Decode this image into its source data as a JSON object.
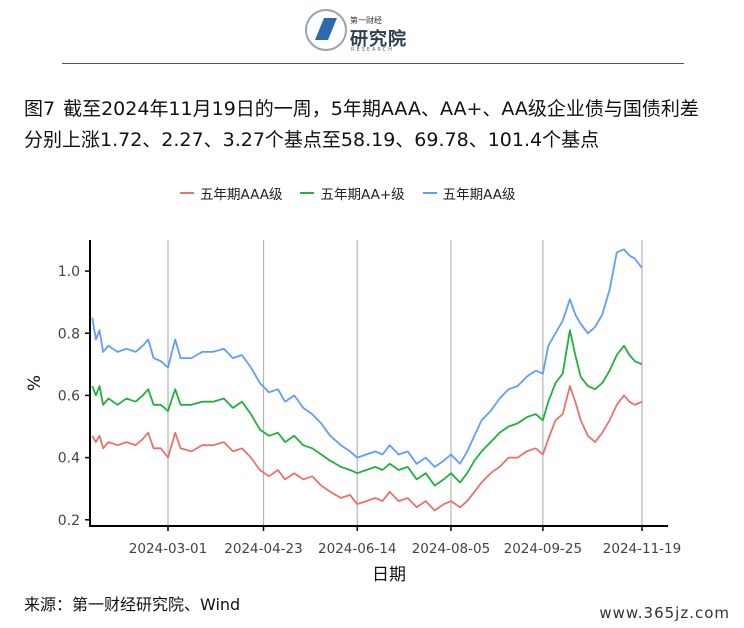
{
  "logo": {
    "top_text": "第一财经",
    "main_text": "研究院",
    "sub_text": "RESEARCH"
  },
  "figure": {
    "number": "图7",
    "title": "截至2024年11月19日的一周，5年期AAA、AA+、AA级企业债与国债利差分别上涨1.72、2.27、3.27个基点至58.19、69.78、101.4个基点"
  },
  "source": "来源：第一财经研究院、Wind",
  "watermark": "www.365jz.com",
  "colors": {
    "aaa": "#e8736c",
    "aaplus": "#1fb040",
    "aa": "#619cff"
  },
  "chart_data": {
    "type": "line",
    "xlabel": "日期",
    "ylabel": "%",
    "x_range": [
      "2024-01-19",
      "2024-11-19"
    ],
    "ylim": [
      0.18,
      1.1
    ],
    "x_ticks": [
      "2024-03-01",
      "2024-04-23",
      "2024-06-14",
      "2024-08-05",
      "2024-09-25",
      "2024-11-19"
    ],
    "y_ticks": [
      0.2,
      0.4,
      0.6,
      0.8,
      1.0
    ],
    "y_tick_labels": [
      "0.2",
      "0.4",
      "0.6",
      "0.8",
      "1.0"
    ],
    "grid": "vertical major lines",
    "legend": "top",
    "series": [
      {
        "name": "五年期AAA级",
        "color": "#e8736c",
        "points": [
          [
            "2024-01-19",
            0.47
          ],
          [
            "2024-01-21",
            0.45
          ],
          [
            "2024-01-23",
            0.47
          ],
          [
            "2024-01-25",
            0.43
          ],
          [
            "2024-01-28",
            0.45
          ],
          [
            "2024-02-02",
            0.44
          ],
          [
            "2024-02-07",
            0.45
          ],
          [
            "2024-02-12",
            0.44
          ],
          [
            "2024-02-16",
            0.46
          ],
          [
            "2024-02-19",
            0.48
          ],
          [
            "2024-02-22",
            0.43
          ],
          [
            "2024-02-26",
            0.43
          ],
          [
            "2024-03-01",
            0.4
          ],
          [
            "2024-03-05",
            0.48
          ],
          [
            "2024-03-08",
            0.43
          ],
          [
            "2024-03-14",
            0.42
          ],
          [
            "2024-03-20",
            0.44
          ],
          [
            "2024-03-26",
            0.44
          ],
          [
            "2024-04-01",
            0.45
          ],
          [
            "2024-04-06",
            0.42
          ],
          [
            "2024-04-11",
            0.43
          ],
          [
            "2024-04-16",
            0.4
          ],
          [
            "2024-04-21",
            0.36
          ],
          [
            "2024-04-26",
            0.34
          ],
          [
            "2024-05-01",
            0.36
          ],
          [
            "2024-05-05",
            0.33
          ],
          [
            "2024-05-10",
            0.35
          ],
          [
            "2024-05-15",
            0.33
          ],
          [
            "2024-05-20",
            0.34
          ],
          [
            "2024-05-25",
            0.31
          ],
          [
            "2024-05-30",
            0.29
          ],
          [
            "2024-06-05",
            0.27
          ],
          [
            "2024-06-10",
            0.28
          ],
          [
            "2024-06-14",
            0.25
          ],
          [
            "2024-06-19",
            0.26
          ],
          [
            "2024-06-24",
            0.27
          ],
          [
            "2024-06-28",
            0.26
          ],
          [
            "2024-07-02",
            0.29
          ],
          [
            "2024-07-07",
            0.26
          ],
          [
            "2024-07-12",
            0.27
          ],
          [
            "2024-07-17",
            0.24
          ],
          [
            "2024-07-22",
            0.26
          ],
          [
            "2024-07-27",
            0.23
          ],
          [
            "2024-08-01",
            0.25
          ],
          [
            "2024-08-05",
            0.26
          ],
          [
            "2024-08-10",
            0.24
          ],
          [
            "2024-08-14",
            0.26
          ],
          [
            "2024-08-18",
            0.29
          ],
          [
            "2024-08-22",
            0.32
          ],
          [
            "2024-08-27",
            0.35
          ],
          [
            "2024-09-01",
            0.37
          ],
          [
            "2024-09-06",
            0.4
          ],
          [
            "2024-09-11",
            0.4
          ],
          [
            "2024-09-16",
            0.42
          ],
          [
            "2024-09-21",
            0.43
          ],
          [
            "2024-09-25",
            0.41
          ],
          [
            "2024-09-28",
            0.46
          ],
          [
            "2024-10-02",
            0.52
          ],
          [
            "2024-10-06",
            0.54
          ],
          [
            "2024-10-10",
            0.63
          ],
          [
            "2024-10-13",
            0.58
          ],
          [
            "2024-10-16",
            0.52
          ],
          [
            "2024-10-20",
            0.47
          ],
          [
            "2024-10-24",
            0.45
          ],
          [
            "2024-10-28",
            0.48
          ],
          [
            "2024-11-01",
            0.52
          ],
          [
            "2024-11-05",
            0.57
          ],
          [
            "2024-11-09",
            0.6
          ],
          [
            "2024-11-12",
            0.58
          ],
          [
            "2024-11-15",
            0.57
          ],
          [
            "2024-11-19",
            0.58
          ]
        ]
      },
      {
        "name": "五年期AA+级",
        "color": "#1fb040",
        "points": [
          [
            "2024-01-19",
            0.63
          ],
          [
            "2024-01-21",
            0.6
          ],
          [
            "2024-01-23",
            0.63
          ],
          [
            "2024-01-25",
            0.57
          ],
          [
            "2024-01-28",
            0.59
          ],
          [
            "2024-02-02",
            0.57
          ],
          [
            "2024-02-07",
            0.59
          ],
          [
            "2024-02-12",
            0.58
          ],
          [
            "2024-02-16",
            0.6
          ],
          [
            "2024-02-19",
            0.62
          ],
          [
            "2024-02-22",
            0.57
          ],
          [
            "2024-02-26",
            0.57
          ],
          [
            "2024-03-01",
            0.55
          ],
          [
            "2024-03-05",
            0.62
          ],
          [
            "2024-03-08",
            0.57
          ],
          [
            "2024-03-14",
            0.57
          ],
          [
            "2024-03-20",
            0.58
          ],
          [
            "2024-03-26",
            0.58
          ],
          [
            "2024-04-01",
            0.59
          ],
          [
            "2024-04-06",
            0.56
          ],
          [
            "2024-04-11",
            0.58
          ],
          [
            "2024-04-16",
            0.54
          ],
          [
            "2024-04-21",
            0.49
          ],
          [
            "2024-04-26",
            0.47
          ],
          [
            "2024-05-01",
            0.48
          ],
          [
            "2024-05-05",
            0.45
          ],
          [
            "2024-05-10",
            0.47
          ],
          [
            "2024-05-15",
            0.44
          ],
          [
            "2024-05-20",
            0.43
          ],
          [
            "2024-05-25",
            0.41
          ],
          [
            "2024-05-30",
            0.39
          ],
          [
            "2024-06-05",
            0.37
          ],
          [
            "2024-06-10",
            0.36
          ],
          [
            "2024-06-14",
            0.35
          ],
          [
            "2024-06-19",
            0.36
          ],
          [
            "2024-06-24",
            0.37
          ],
          [
            "2024-06-28",
            0.36
          ],
          [
            "2024-07-02",
            0.38
          ],
          [
            "2024-07-07",
            0.36
          ],
          [
            "2024-07-12",
            0.37
          ],
          [
            "2024-07-17",
            0.33
          ],
          [
            "2024-07-22",
            0.35
          ],
          [
            "2024-07-27",
            0.31
          ],
          [
            "2024-08-01",
            0.33
          ],
          [
            "2024-08-05",
            0.35
          ],
          [
            "2024-08-10",
            0.32
          ],
          [
            "2024-08-14",
            0.35
          ],
          [
            "2024-08-18",
            0.39
          ],
          [
            "2024-08-22",
            0.42
          ],
          [
            "2024-08-27",
            0.45
          ],
          [
            "2024-09-01",
            0.48
          ],
          [
            "2024-09-06",
            0.5
          ],
          [
            "2024-09-11",
            0.51
          ],
          [
            "2024-09-16",
            0.53
          ],
          [
            "2024-09-21",
            0.54
          ],
          [
            "2024-09-25",
            0.52
          ],
          [
            "2024-09-28",
            0.58
          ],
          [
            "2024-10-02",
            0.64
          ],
          [
            "2024-10-06",
            0.67
          ],
          [
            "2024-10-10",
            0.81
          ],
          [
            "2024-10-13",
            0.73
          ],
          [
            "2024-10-16",
            0.66
          ],
          [
            "2024-10-20",
            0.63
          ],
          [
            "2024-10-24",
            0.62
          ],
          [
            "2024-10-28",
            0.64
          ],
          [
            "2024-11-01",
            0.68
          ],
          [
            "2024-11-05",
            0.73
          ],
          [
            "2024-11-09",
            0.76
          ],
          [
            "2024-11-12",
            0.73
          ],
          [
            "2024-11-15",
            0.71
          ],
          [
            "2024-11-19",
            0.7
          ]
        ]
      },
      {
        "name": "五年期AA级",
        "color": "#619cff",
        "points": [
          [
            "2024-01-19",
            0.85
          ],
          [
            "2024-01-21",
            0.78
          ],
          [
            "2024-01-23",
            0.81
          ],
          [
            "2024-01-25",
            0.74
          ],
          [
            "2024-01-28",
            0.76
          ],
          [
            "2024-02-02",
            0.74
          ],
          [
            "2024-02-07",
            0.75
          ],
          [
            "2024-02-12",
            0.74
          ],
          [
            "2024-02-16",
            0.76
          ],
          [
            "2024-02-19",
            0.78
          ],
          [
            "2024-02-22",
            0.72
          ],
          [
            "2024-02-26",
            0.71
          ],
          [
            "2024-03-01",
            0.69
          ],
          [
            "2024-03-05",
            0.78
          ],
          [
            "2024-03-08",
            0.72
          ],
          [
            "2024-03-14",
            0.72
          ],
          [
            "2024-03-20",
            0.74
          ],
          [
            "2024-03-26",
            0.74
          ],
          [
            "2024-04-01",
            0.75
          ],
          [
            "2024-04-06",
            0.72
          ],
          [
            "2024-04-11",
            0.73
          ],
          [
            "2024-04-16",
            0.69
          ],
          [
            "2024-04-21",
            0.64
          ],
          [
            "2024-04-26",
            0.61
          ],
          [
            "2024-05-01",
            0.62
          ],
          [
            "2024-05-05",
            0.58
          ],
          [
            "2024-05-10",
            0.6
          ],
          [
            "2024-05-15",
            0.56
          ],
          [
            "2024-05-20",
            0.54
          ],
          [
            "2024-05-25",
            0.51
          ],
          [
            "2024-05-30",
            0.47
          ],
          [
            "2024-06-05",
            0.44
          ],
          [
            "2024-06-10",
            0.42
          ],
          [
            "2024-06-14",
            0.4
          ],
          [
            "2024-06-19",
            0.41
          ],
          [
            "2024-06-24",
            0.42
          ],
          [
            "2024-06-28",
            0.41
          ],
          [
            "2024-07-02",
            0.44
          ],
          [
            "2024-07-07",
            0.41
          ],
          [
            "2024-07-12",
            0.42
          ],
          [
            "2024-07-17",
            0.38
          ],
          [
            "2024-07-22",
            0.4
          ],
          [
            "2024-07-27",
            0.37
          ],
          [
            "2024-08-01",
            0.39
          ],
          [
            "2024-08-05",
            0.41
          ],
          [
            "2024-08-10",
            0.38
          ],
          [
            "2024-08-14",
            0.42
          ],
          [
            "2024-08-18",
            0.47
          ],
          [
            "2024-08-22",
            0.52
          ],
          [
            "2024-08-27",
            0.55
          ],
          [
            "2024-09-01",
            0.59
          ],
          [
            "2024-09-06",
            0.62
          ],
          [
            "2024-09-11",
            0.63
          ],
          [
            "2024-09-16",
            0.66
          ],
          [
            "2024-09-21",
            0.68
          ],
          [
            "2024-09-25",
            0.67
          ],
          [
            "2024-09-28",
            0.76
          ],
          [
            "2024-10-02",
            0.8
          ],
          [
            "2024-10-06",
            0.84
          ],
          [
            "2024-10-10",
            0.91
          ],
          [
            "2024-10-13",
            0.86
          ],
          [
            "2024-10-16",
            0.83
          ],
          [
            "2024-10-20",
            0.8
          ],
          [
            "2024-10-24",
            0.82
          ],
          [
            "2024-10-28",
            0.86
          ],
          [
            "2024-11-01",
            0.94
          ],
          [
            "2024-11-05",
            1.06
          ],
          [
            "2024-11-09",
            1.07
          ],
          [
            "2024-11-12",
            1.05
          ],
          [
            "2024-11-15",
            1.04
          ],
          [
            "2024-11-19",
            1.01
          ]
        ]
      }
    ]
  }
}
